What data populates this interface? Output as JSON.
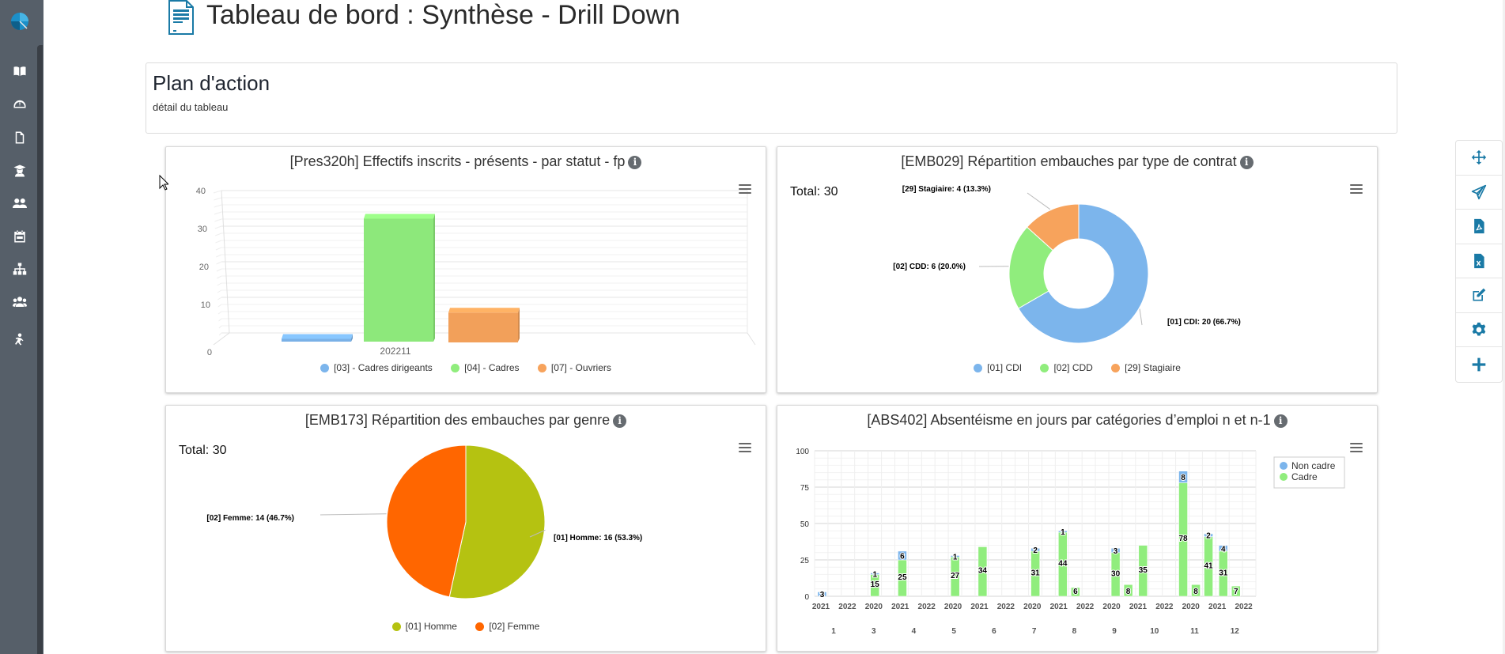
{
  "colors": {
    "sidebar_bg": "#565f69",
    "accent": "#1a7aa6",
    "blue": "#7cb5ec",
    "green": "#90ed7d",
    "orange": "#f7a35c",
    "olive": "#b5c211",
    "red_orange": "#ff6600"
  },
  "sidebar": {
    "logo": "pie-logo-icon",
    "items": [
      {
        "icon": "book-icon"
      },
      {
        "icon": "dashboard-gauge-icon"
      },
      {
        "icon": "file-icon"
      },
      {
        "icon": "graduate-icon"
      },
      {
        "icon": "users-icon"
      },
      {
        "icon": "calendar-icon"
      },
      {
        "icon": "sitemap-icon"
      },
      {
        "icon": "group-icon"
      },
      {
        "icon": "running-person-icon"
      }
    ]
  },
  "header": {
    "title": "Tableau de bord : Synthèse - Drill Down",
    "icon": "document-icon"
  },
  "plan": {
    "title": "Plan d'action",
    "subtitle": "détail du tableau"
  },
  "toolbar": {
    "buttons": [
      {
        "icon": "move-icon",
        "label": "move"
      },
      {
        "icon": "send-icon",
        "label": "send"
      },
      {
        "icon": "pdf-icon",
        "label": "pdf export"
      },
      {
        "icon": "excel-icon",
        "label": "excel export"
      },
      {
        "icon": "edit-icon",
        "label": "edit"
      },
      {
        "icon": "gear-icon",
        "label": "settings"
      },
      {
        "icon": "plus-icon",
        "label": "add"
      }
    ]
  },
  "chart_data": [
    {
      "id": "pres320h",
      "type": "bar",
      "title": "[Pres320h] Effectifs inscrits - présents - par statut - fp",
      "style": "3d",
      "categories": [
        "202211"
      ],
      "series": [
        {
          "name": "[03] - Cadres dirigeants",
          "values": [
            2
          ],
          "color": "#7cb5ec"
        },
        {
          "name": "[04] - Cadres",
          "values": [
            34
          ],
          "color": "#90ed7d"
        },
        {
          "name": "[07] - Ouvriers",
          "values": [
            9
          ],
          "color": "#f7a35c"
        }
      ],
      "yticks": [
        "0",
        "10",
        "20",
        "30",
        "40"
      ],
      "ylim": [
        0,
        40
      ],
      "legend": "bottom-center"
    },
    {
      "id": "emb029",
      "type": "pie",
      "donut": true,
      "title": "[EMB029] Répartition embauches par type de contrat",
      "total_label": "Total: 30",
      "slices": [
        {
          "name": "[01] CDI",
          "value": 20,
          "percent": "66.7%",
          "label": "[01] CDI: 20 (66.7%)",
          "color": "#7cb5ec"
        },
        {
          "name": "[02] CDD",
          "value": 6,
          "percent": "20.0%",
          "label": "[02] CDD: 6 (20.0%)",
          "color": "#90ed7d"
        },
        {
          "name": "[29] Stagiaire",
          "value": 4,
          "percent": "13.3%",
          "label": "[29]  Stagiaire: 4 (13.3%)",
          "color": "#f7a35c"
        }
      ],
      "legend": "bottom-center"
    },
    {
      "id": "emb173",
      "type": "pie",
      "donut": false,
      "title": "[EMB173] Répartition des embauches par genre",
      "total_label": "Total: 30",
      "slices": [
        {
          "name": "[01] Homme",
          "value": 16,
          "percent": "53.3%",
          "label": "[01] Homme: 16 (53.3%)",
          "color": "#b5c211"
        },
        {
          "name": "[02] Femme",
          "value": 14,
          "percent": "46.7%",
          "label": "[02] Femme: 14 (46.7%)",
          "color": "#ff6600"
        }
      ],
      "legend": "bottom-center"
    },
    {
      "id": "abs402",
      "type": "bar",
      "stacked": true,
      "title": "[ABS402] Absentéisme en jours par catégories d’emploi n et n-1",
      "year_ticks": [
        "2021",
        "2022",
        "2020",
        "2021",
        "2022",
        "2020",
        "2021",
        "2022",
        "2020",
        "2021",
        "2022",
        "2020",
        "2021",
        "2022",
        "2020",
        "2021",
        "2022"
      ],
      "month_labels": [
        "1",
        "3",
        "4",
        "5",
        "6",
        "7",
        "8",
        "9",
        "10",
        "11",
        "12"
      ],
      "yticks": [
        "0",
        "25",
        "50",
        "75",
        "100"
      ],
      "ylim": [
        0,
        100
      ],
      "series_names": [
        "Non cadre",
        "Cadre"
      ],
      "series_colors": [
        "#7cb5ec",
        "#90ed7d"
      ],
      "bars": [
        {
          "month": "1",
          "slot": 0,
          "cadre": 0,
          "non_cadre": 3
        },
        {
          "month": "3",
          "slot": 1,
          "cadre": 15,
          "non_cadre": 1
        },
        {
          "month": "4",
          "slot": 0,
          "cadre": 25,
          "non_cadre": 6
        },
        {
          "month": "5",
          "slot": 1,
          "cadre": 27,
          "non_cadre": 1
        },
        {
          "month": "6",
          "slot": 0,
          "cadre": 34,
          "non_cadre": 0
        },
        {
          "month": "7",
          "slot": 1,
          "cadre": 31,
          "non_cadre": 2
        },
        {
          "month": "8",
          "slot": 0,
          "cadre": 44,
          "non_cadre": 1
        },
        {
          "month": "8",
          "slot": 1,
          "cadre": 6,
          "non_cadre": 0
        },
        {
          "month": "9",
          "slot": 1,
          "cadre": 30,
          "non_cadre": 3
        },
        {
          "month": "9",
          "slot": 2,
          "cadre": 8,
          "non_cadre": 0
        },
        {
          "month": "10",
          "slot": 0,
          "cadre": 35,
          "non_cadre": 0
        },
        {
          "month": "11",
          "slot": 0,
          "cadre": 78,
          "non_cadre": 8
        },
        {
          "month": "11",
          "slot": 1,
          "cadre": 8,
          "non_cadre": 0
        },
        {
          "month": "11",
          "slot": 2,
          "cadre": 41,
          "non_cadre": 2
        },
        {
          "month": "12",
          "slot": 0,
          "cadre": 31,
          "non_cadre": 4
        },
        {
          "month": "12",
          "slot": 1,
          "cadre": 7,
          "non_cadre": 0
        }
      ],
      "show_cadre_labels": [
        false,
        true,
        true,
        true,
        true,
        true,
        true,
        true,
        true,
        true,
        true,
        true,
        true,
        true,
        true,
        true
      ],
      "legend": "right-top"
    }
  ]
}
